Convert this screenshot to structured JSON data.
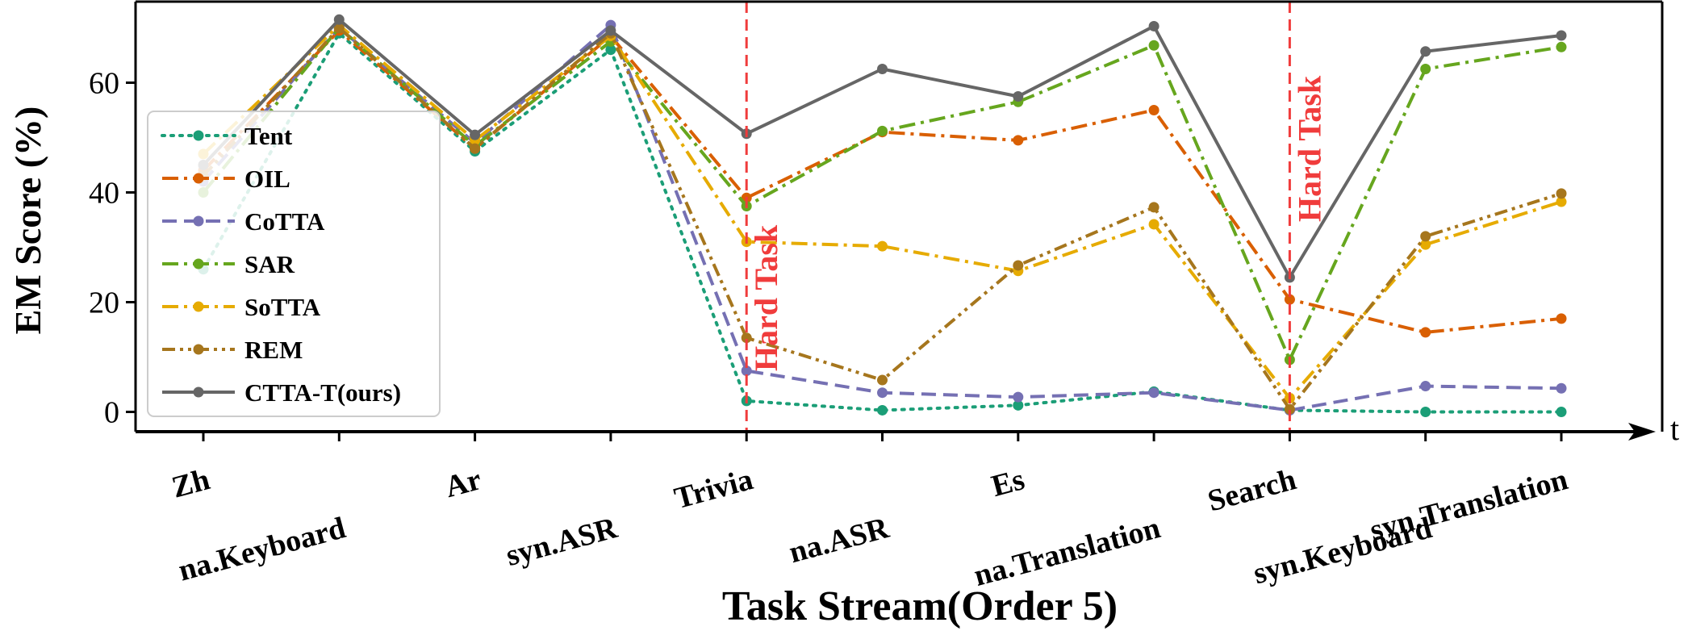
{
  "chart_data": {
    "type": "line",
    "xlabel": "Task Stream(Order 5)",
    "ylabel": "EM Score (%)",
    "x_axis_end_label": "t",
    "ylim": [
      -4,
      75
    ],
    "yticks": [
      0,
      20,
      40,
      60
    ],
    "grid": false,
    "legend_position": "left-center",
    "categories": [
      "Zh",
      "na.Keyboard",
      "Ar",
      "syn.ASR",
      "Trivia",
      "na.ASR",
      "Es",
      "na.Translation",
      "Search",
      "syn.Keyboard",
      "syn.Translation"
    ],
    "annotations": [
      {
        "text": "Hard Task",
        "category": "Trivia",
        "color": "#f03c3c"
      },
      {
        "text": "Hard Task",
        "category": "Search",
        "color": "#f03c3c"
      }
    ],
    "series": [
      {
        "name": "Tent",
        "color": "#1b9e77",
        "dash": "dot",
        "values": [
          26,
          69,
          47.5,
          66,
          2,
          0.3,
          1.2,
          3.7,
          0.3,
          0,
          0
        ]
      },
      {
        "name": "OIL",
        "color": "#d95f02",
        "dash": "dashdot",
        "values": [
          44,
          69.5,
          48,
          68.5,
          39,
          51,
          49.5,
          55,
          20.5,
          14.5,
          17
        ]
      },
      {
        "name": "CoTTA",
        "color": "#7570b3",
        "dash": "dash",
        "values": [
          42,
          70,
          49,
          70.5,
          7.5,
          3.5,
          2.7,
          3.5,
          0.3,
          4.7,
          4.3
        ]
      },
      {
        "name": "SAR",
        "color": "#66a61e",
        "dash": "dashdot",
        "values": [
          40,
          70,
          48.5,
          67.5,
          37.5,
          51.2,
          56.5,
          66.8,
          9.5,
          62.5,
          66.5
        ]
      },
      {
        "name": "SoTTA",
        "color": "#e6ab02",
        "dash": "dashdot",
        "values": [
          47,
          70.5,
          49.5,
          68.5,
          31,
          30.2,
          25.7,
          34.2,
          2.5,
          30.5,
          38.3
        ]
      },
      {
        "name": "REM",
        "color": "#a6761d",
        "dash": "dashdotdot",
        "values": [
          43,
          70,
          48,
          69,
          13.5,
          5.8,
          26.7,
          37.3,
          0.5,
          32,
          39.8
        ]
      },
      {
        "name": "CTTA-T(ours)",
        "color": "#666666",
        "dash": "solid",
        "values": [
          45,
          71.5,
          50.5,
          69.5,
          50.7,
          62.5,
          57.5,
          70.3,
          24.5,
          65.7,
          68.6
        ]
      }
    ]
  }
}
